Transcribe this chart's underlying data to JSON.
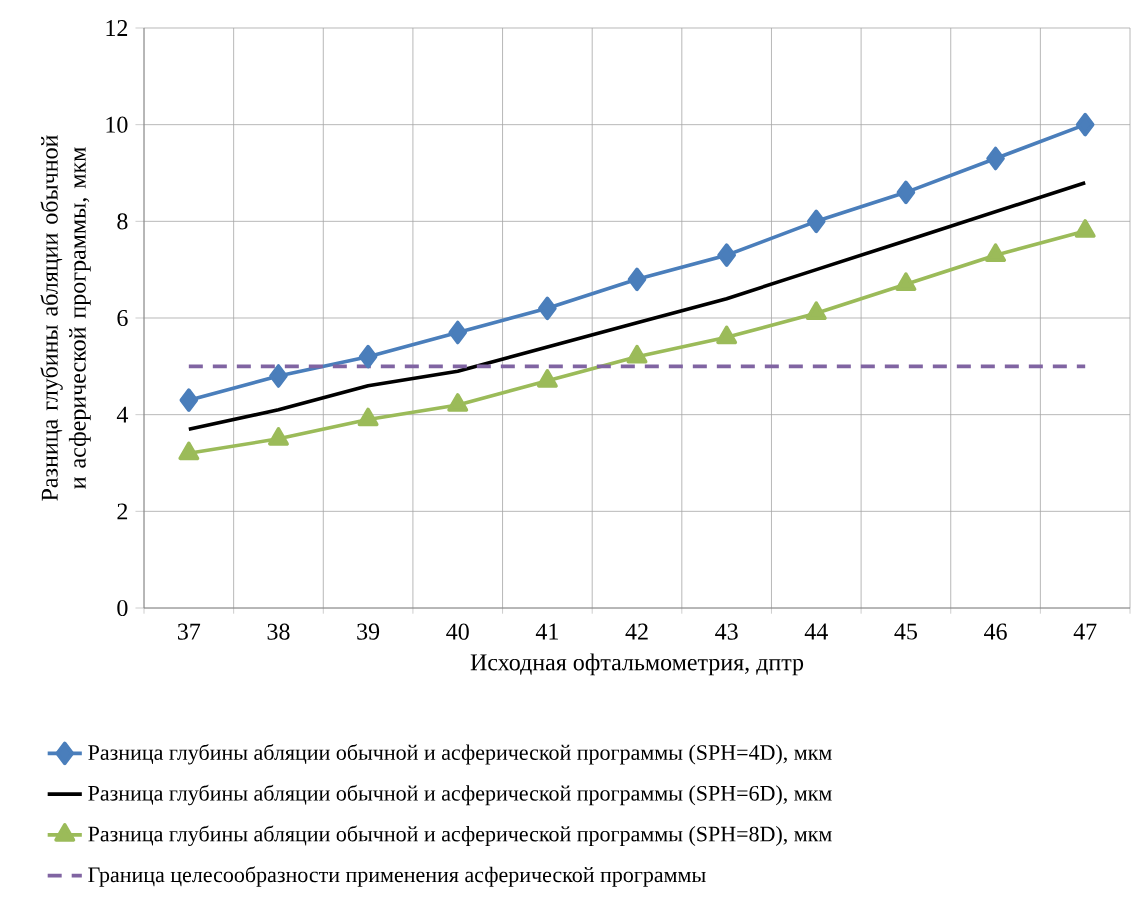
{
  "chart_data": {
    "type": "line",
    "xlabel": "Исходная офтальмометрия, дптр",
    "ylabel": "Разница глубины абляции обычной и асферической программы, мкм",
    "categories": [
      "37",
      "38",
      "39",
      "40",
      "41",
      "42",
      "43",
      "44",
      "45",
      "46",
      "47"
    ],
    "series": [
      {
        "name": "Разница глубины абляции обычной и асферической программы (SPH=4D), мкм",
        "color": "#4a7ebb",
        "marker": "diamond",
        "line_style": "solid",
        "values": [
          4.3,
          4.8,
          5.2,
          5.7,
          6.2,
          6.8,
          7.3,
          8.0,
          8.6,
          9.3,
          10.0
        ]
      },
      {
        "name": "Разница глубины абляции обычной и асферической программы (SPH=6D), мкм",
        "color": "#000000",
        "marker": "none",
        "line_style": "solid",
        "values": [
          3.7,
          4.1,
          4.6,
          4.9,
          5.4,
          5.9,
          6.4,
          7.0,
          7.6,
          8.2,
          8.8
        ]
      },
      {
        "name": "Разница глубины абляции обычной и асферической программы (SPH=8D), мкм",
        "color": "#9bbb59",
        "marker": "triangle",
        "line_style": "solid",
        "values": [
          3.2,
          3.5,
          3.9,
          4.2,
          4.7,
          5.2,
          5.6,
          6.1,
          6.7,
          7.3,
          7.8
        ]
      },
      {
        "name": "Граница целесообразности применения асферической программы",
        "color": "#8064a2",
        "marker": "none",
        "line_style": "dashed",
        "values": [
          5,
          5,
          5,
          5,
          5,
          5,
          5,
          5,
          5,
          5,
          5
        ]
      }
    ],
    "ylim": [
      0,
      12
    ],
    "yticks": [
      0,
      2,
      4,
      6,
      8,
      10,
      12
    ],
    "grid": true,
    "legend": "bottom"
  }
}
